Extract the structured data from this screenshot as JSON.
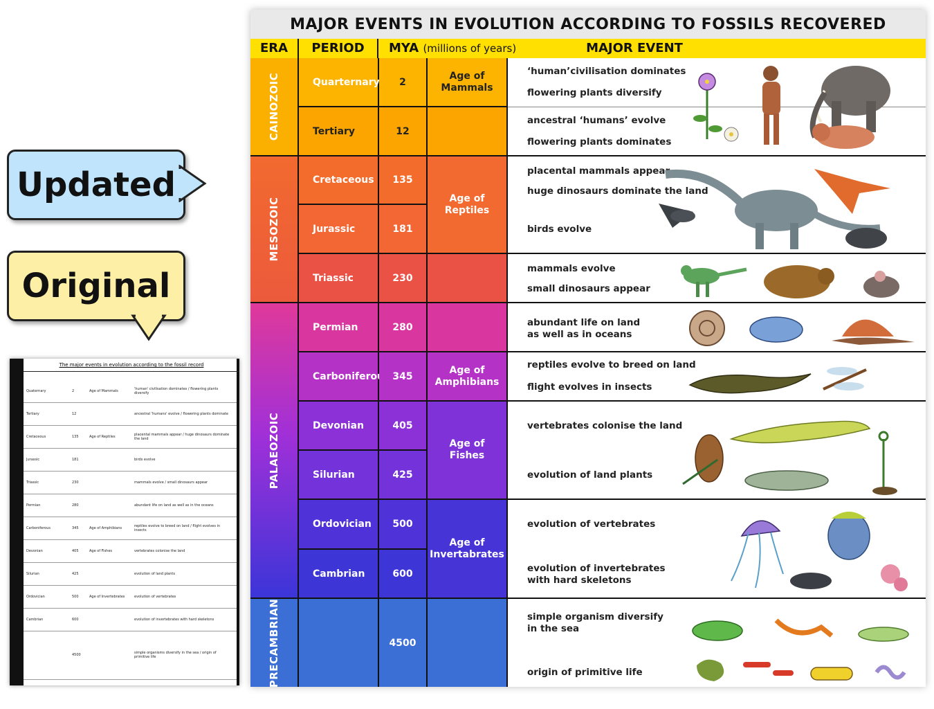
{
  "callouts": {
    "updated": "Updated",
    "original": "Original"
  },
  "thumbnail": {
    "title": "The major events in evolution according to the fossil record",
    "rows": [
      {
        "period": "Quaternary",
        "mya": "2",
        "age": "Age of Mammals",
        "event": "'human' civilisation dominates / flowering plants diversify"
      },
      {
        "period": "Tertiary",
        "mya": "12",
        "age": "",
        "event": "ancestral 'humans' evolve / flowering plants dominate"
      },
      {
        "period": "Cretaceous",
        "mya": "135",
        "age": "Age of Reptiles",
        "event": "placental mammals appear / huge dinosaurs dominate the land"
      },
      {
        "period": "Jurassic",
        "mya": "181",
        "age": "",
        "event": "birds evolve"
      },
      {
        "period": "Triassic",
        "mya": "230",
        "age": "",
        "event": "mammals evolve / small dinosaurs appear"
      },
      {
        "period": "Permian",
        "mya": "280",
        "age": "",
        "event": "abundant life on land as well as in the oceans"
      },
      {
        "period": "Carboniferous",
        "mya": "345",
        "age": "Age of Amphibians",
        "event": "reptiles evolve to breed on land / flight evolves in insects"
      },
      {
        "period": "Devonian",
        "mya": "405",
        "age": "Age of Fishes",
        "event": "vertebrates colonise the land"
      },
      {
        "period": "Silurian",
        "mya": "425",
        "age": "",
        "event": "evolution of land plants"
      },
      {
        "period": "Ordovician",
        "mya": "500",
        "age": "Age of Invertebrates",
        "event": "evolution of vertebrates"
      },
      {
        "period": "Cambrian",
        "mya": "600",
        "age": "",
        "event": "evolution of invertebrates with hard skeletons"
      },
      {
        "period": "",
        "mya": "4500",
        "age": "",
        "event": "simple organisms diversify in the sea / origin of primitive life"
      }
    ]
  },
  "poster": {
    "title": "MAJOR EVENTS IN EVOLUTION ACCORDING TO FOSSILS RECOVERED",
    "headers": {
      "era": "ERA",
      "period": "PERIOD",
      "mya": "MYA",
      "mya_unit": "(millions of years)",
      "event": "MAJOR EVENT"
    },
    "eras": {
      "cainozoic": "CAINOZOIC",
      "mesozoic": "MESOZOIC",
      "palaeozoic": "PALAEOZOIC",
      "precambrian": "PRECAMBRIAN"
    },
    "rows": [
      {
        "period": "Quarternary",
        "mya": "2"
      },
      {
        "period": "Tertiary",
        "mya": "12"
      },
      {
        "period": "Cretaceous",
        "mya": "135"
      },
      {
        "period": "Jurassic",
        "mya": "181"
      },
      {
        "period": "Triassic",
        "mya": "230"
      },
      {
        "period": "Permian",
        "mya": "280"
      },
      {
        "period": "Carboniferous",
        "mya": "345"
      },
      {
        "period": "Devonian",
        "mya": "405"
      },
      {
        "period": "Silurian",
        "mya": "425"
      },
      {
        "period": "Ordovician",
        "mya": "500"
      },
      {
        "period": "Cambrian",
        "mya": "600"
      },
      {
        "period": "",
        "mya": "4500"
      }
    ],
    "ages": {
      "mammals": "Age of Mammals",
      "reptiles": "Age of Reptiles",
      "amphibians": "Age of Amphibians",
      "fishes": "Age of Fishes",
      "invertebrates": "Age of Invertabrates"
    },
    "events": {
      "e1a": "‘human’civilisation dominates",
      "e1b": "flowering plants diversify",
      "e2a": "ancestral ‘humans’ evolve",
      "e2b": "flowering plants dominates",
      "e3a": "placental mammals appear",
      "e3b": "huge dinosaurs dominate the land",
      "e3c": "birds evolve",
      "e4a": "mammals evolve",
      "e4b": "small dinosaurs appear",
      "e5a": "abundant life on land",
      "e5b": "as well as in oceans",
      "e6a": "reptiles evolve to breed on land",
      "e6b": "flight evolves in insects",
      "e7a": "vertebrates colonise the land",
      "e7b": "evolution of land plants",
      "e8a": "evolution of vertebrates",
      "e8b": "evolution of invertebrates",
      "e8c": "with hard skeletons",
      "e9a": "simple organism diversify",
      "e9b": "in the sea",
      "e9c": "origin of primitive life"
    },
    "colors": {
      "cainozoic": "#fbb000",
      "mesozoic": "#f26a2f",
      "palaeozoic_top": "#e0399a",
      "palaeozoic_bottom": "#3b35d8",
      "precambrian": "#3b6fd6",
      "header": "#ffe000"
    }
  }
}
